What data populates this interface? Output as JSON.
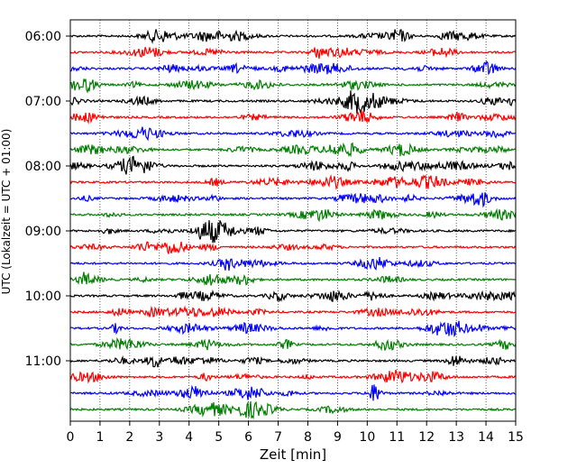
{
  "chart_data": {
    "type": "line",
    "title": "",
    "xlabel": "Zeit  [min]",
    "ylabel": "UTC (Lokalzeit = UTC + 01:00)",
    "xlim": [
      0,
      15
    ],
    "x_ticks": [
      "0",
      "1",
      "2",
      "3",
      "4",
      "5",
      "6",
      "7",
      "8",
      "9",
      "10",
      "11",
      "12",
      "13",
      "14",
      "15"
    ],
    "y_ticks": [
      "06:00",
      "07:00",
      "08:00",
      "09:00",
      "10:00",
      "11:00"
    ],
    "grid": "vertical dotted at each minute",
    "trace_interval_minutes": 15,
    "start_time": "06:00",
    "trace_count": 24,
    "trace_colors": [
      "#000000",
      "#ff0000",
      "#0000ff",
      "#008000"
    ]
  }
}
